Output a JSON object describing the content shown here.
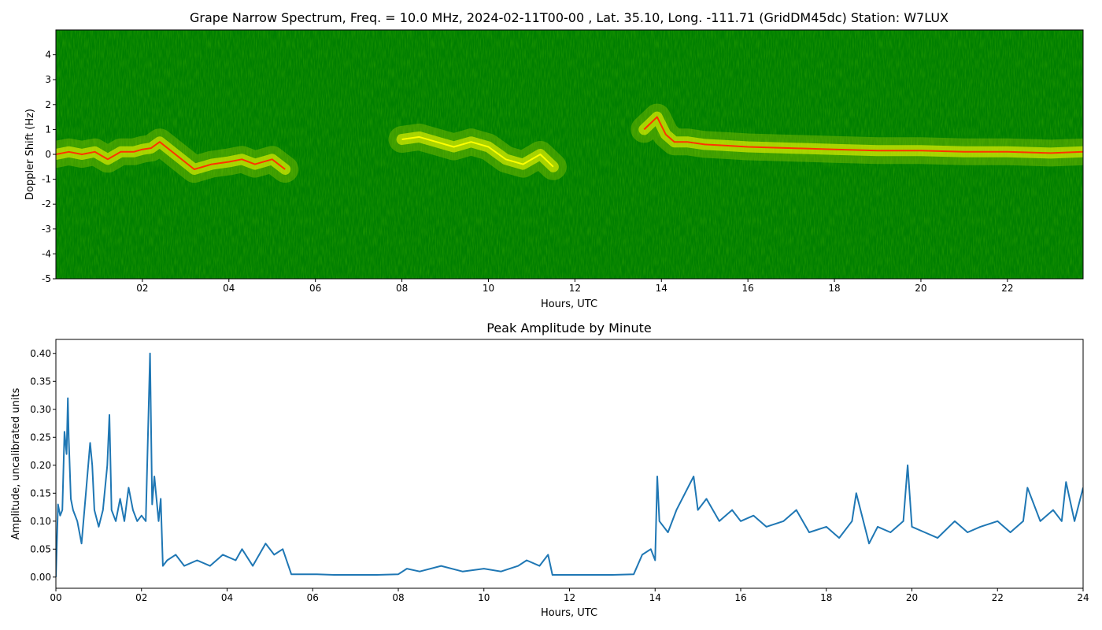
{
  "chart_data": [
    {
      "type": "heatmap",
      "title": "Grape Narrow Spectrum, Freq. = 10.0 MHz, 2024-02-11T00-00 , Lat.  35.10, Long. -111.71 (GridDM45dc) Station: W7LUX",
      "xlabel": "Hours, UTC",
      "ylabel": "Doppler Shift (Hz)",
      "xlim": [
        0,
        23.75
      ],
      "ylim": [
        -5,
        5
      ],
      "x_ticks": [
        2,
        4,
        6,
        8,
        10,
        12,
        14,
        16,
        18,
        20,
        22
      ],
      "x_tick_labels": [
        "02",
        "04",
        "06",
        "08",
        "10",
        "12",
        "14",
        "16",
        "18",
        "20",
        "22"
      ],
      "y_ticks": [
        -5,
        -4,
        -3,
        -2,
        -1,
        0,
        1,
        2,
        3,
        4
      ],
      "y_tick_labels": [
        "-5",
        "-4",
        "-3",
        "-2",
        "-1",
        "0",
        "1",
        "2",
        "3",
        "4"
      ],
      "colors": {
        "background": "#007f00",
        "mid": "#a8d400",
        "high": "#ffff00",
        "peak": "#ff3300"
      },
      "doppler_trace": [
        [
          0.0,
          0.0
        ],
        [
          0.3,
          0.1
        ],
        [
          0.6,
          0.0
        ],
        [
          0.9,
          0.1
        ],
        [
          1.2,
          -0.2
        ],
        [
          1.5,
          0.1
        ],
        [
          1.8,
          0.1
        ],
        [
          2.0,
          0.2
        ],
        [
          2.2,
          0.25
        ],
        [
          2.4,
          0.5
        ],
        [
          3.2,
          -0.6
        ],
        [
          3.6,
          -0.4
        ],
        [
          4.0,
          -0.3
        ],
        [
          4.3,
          -0.2
        ],
        [
          4.6,
          -0.4
        ],
        [
          5.0,
          -0.2
        ],
        [
          5.3,
          -0.6
        ],
        [
          8.0,
          0.6
        ],
        [
          8.4,
          0.7
        ],
        [
          8.8,
          0.5
        ],
        [
          9.2,
          0.3
        ],
        [
          9.6,
          0.5
        ],
        [
          10.0,
          0.3
        ],
        [
          10.4,
          -0.2
        ],
        [
          10.8,
          -0.4
        ],
        [
          11.2,
          0.0
        ],
        [
          11.5,
          -0.5
        ],
        [
          13.6,
          1.0
        ],
        [
          13.9,
          1.5
        ],
        [
          14.1,
          0.8
        ],
        [
          14.3,
          0.5
        ],
        [
          14.6,
          0.5
        ],
        [
          15.0,
          0.4
        ],
        [
          15.5,
          0.35
        ],
        [
          16.0,
          0.3
        ],
        [
          17.0,
          0.25
        ],
        [
          18.0,
          0.2
        ],
        [
          19.0,
          0.15
        ],
        [
          20.0,
          0.15
        ],
        [
          21.0,
          0.1
        ],
        [
          22.0,
          0.1
        ],
        [
          23.0,
          0.05
        ],
        [
          23.75,
          0.1
        ]
      ]
    },
    {
      "type": "line",
      "title": "Peak Amplitude by Minute",
      "xlabel": "Hours, UTC",
      "ylabel": "Amplitude, uncalibrated units",
      "xlim": [
        0,
        24
      ],
      "ylim": [
        -0.02,
        0.425
      ],
      "x_ticks": [
        0,
        2,
        4,
        6,
        8,
        10,
        12,
        14,
        16,
        18,
        20,
        22,
        24
      ],
      "x_tick_labels": [
        "00",
        "02",
        "04",
        "06",
        "08",
        "10",
        "12",
        "14",
        "16",
        "18",
        "20",
        "22",
        "24"
      ],
      "y_ticks": [
        0.0,
        0.05,
        0.1,
        0.15,
        0.2,
        0.25,
        0.3,
        0.35,
        0.4
      ],
      "y_tick_labels": [
        "0.00",
        "0.05",
        "0.10",
        "0.15",
        "0.20",
        "0.25",
        "0.30",
        "0.35",
        "0.40"
      ],
      "line_color": "#1f77b4",
      "series": [
        {
          "x": [
            0.0,
            0.05,
            0.1,
            0.15,
            0.2,
            0.25,
            0.28,
            0.3,
            0.35,
            0.4,
            0.5,
            0.6,
            0.7,
            0.8,
            0.85,
            0.9,
            1.0,
            1.1,
            1.2,
            1.25,
            1.3,
            1.4,
            1.5,
            1.6,
            1.7,
            1.8,
            1.9,
            2.0,
            2.1,
            2.2,
            2.25,
            2.3,
            2.4,
            2.45,
            2.5,
            2.6,
            2.8,
            3.0,
            3.3,
            3.6,
            3.9,
            4.2,
            4.35,
            4.6,
            4.9,
            5.1,
            5.3,
            5.5,
            5.8,
            6.1,
            6.5,
            7.0,
            7.5,
            8.0,
            8.2,
            8.5,
            9.0,
            9.5,
            10.0,
            10.4,
            10.8,
            11.0,
            11.3,
            11.5,
            11.6,
            12.0,
            12.5,
            13.0,
            13.5,
            13.7,
            13.9,
            14.0,
            14.05,
            14.1,
            14.3,
            14.5,
            14.7,
            14.9,
            15.0,
            15.2,
            15.5,
            15.8,
            16.0,
            16.3,
            16.6,
            17.0,
            17.3,
            17.6,
            18.0,
            18.3,
            18.6,
            18.7,
            19.0,
            19.2,
            19.5,
            19.8,
            19.9,
            20.0,
            20.3,
            20.6,
            21.0,
            21.3,
            21.6,
            22.0,
            22.3,
            22.6,
            22.7,
            23.0,
            23.3,
            23.5,
            23.6,
            23.8,
            24.0
          ],
          "values": [
            0.0,
            0.13,
            0.11,
            0.12,
            0.26,
            0.22,
            0.32,
            0.25,
            0.14,
            0.12,
            0.1,
            0.06,
            0.15,
            0.24,
            0.2,
            0.12,
            0.09,
            0.12,
            0.2,
            0.29,
            0.12,
            0.1,
            0.14,
            0.1,
            0.16,
            0.12,
            0.1,
            0.11,
            0.1,
            0.4,
            0.13,
            0.18,
            0.1,
            0.14,
            0.02,
            0.03,
            0.04,
            0.02,
            0.03,
            0.02,
            0.04,
            0.03,
            0.05,
            0.02,
            0.06,
            0.04,
            0.05,
            0.005,
            0.005,
            0.005,
            0.004,
            0.004,
            0.004,
            0.005,
            0.015,
            0.01,
            0.02,
            0.01,
            0.015,
            0.01,
            0.02,
            0.03,
            0.02,
            0.04,
            0.004,
            0.004,
            0.004,
            0.004,
            0.005,
            0.04,
            0.05,
            0.03,
            0.18,
            0.1,
            0.08,
            0.12,
            0.15,
            0.18,
            0.12,
            0.14,
            0.1,
            0.12,
            0.1,
            0.11,
            0.09,
            0.1,
            0.12,
            0.08,
            0.09,
            0.07,
            0.1,
            0.15,
            0.06,
            0.09,
            0.08,
            0.1,
            0.2,
            0.09,
            0.08,
            0.07,
            0.1,
            0.08,
            0.09,
            0.1,
            0.08,
            0.1,
            0.16,
            0.1,
            0.12,
            0.1,
            0.17,
            0.1,
            0.16
          ]
        }
      ]
    }
  ]
}
